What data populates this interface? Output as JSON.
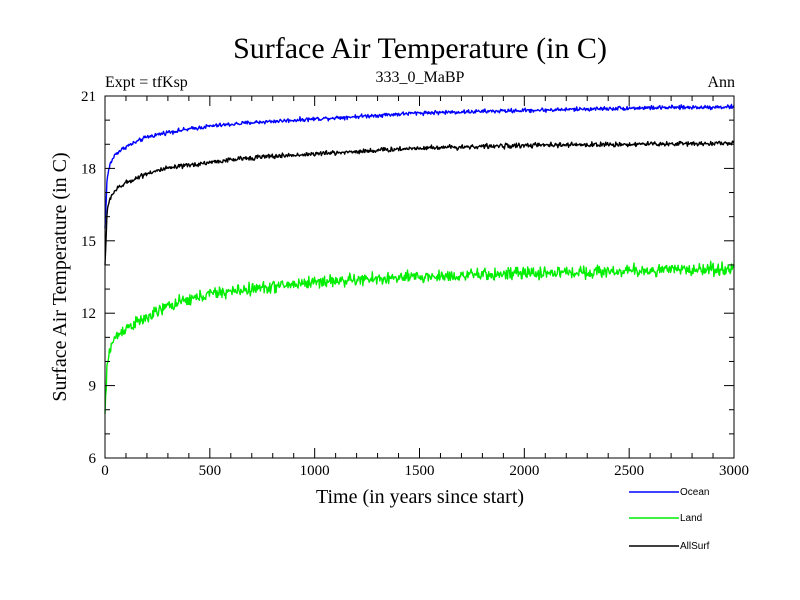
{
  "chart_data": {
    "type": "line",
    "title": "Surface Air Temperature (in C)",
    "subtitle_left": "Expt = tfKsp",
    "subtitle_center": "333_0_MaBP",
    "subtitle_right": "Ann",
    "xlabel": "Time (in years since start)",
    "ylabel": "Surface Air Temperature (in C)",
    "xlim": [
      0,
      3000
    ],
    "ylim": [
      6,
      21
    ],
    "xticks": [
      0,
      500,
      1000,
      1500,
      2000,
      2500,
      3000
    ],
    "yticks": [
      6,
      9,
      12,
      15,
      18,
      21
    ],
    "xtick_labels": [
      "0",
      "500",
      "1000",
      "1500",
      "2000",
      "2500",
      "3000"
    ],
    "ytick_labels": [
      "6",
      "9",
      "12",
      "15",
      "18",
      "21"
    ],
    "x": [
      0,
      10,
      25,
      50,
      100,
      200,
      300,
      500,
      700,
      1000,
      1500,
      2000,
      2500,
      3000
    ],
    "series": [
      {
        "name": "Ocean",
        "color": "#0000ff",
        "values": [
          15.5,
          17.6,
          18.2,
          18.6,
          18.9,
          19.3,
          19.5,
          19.75,
          19.9,
          20.05,
          20.3,
          20.4,
          20.5,
          20.55
        ],
        "noise": 0.06
      },
      {
        "name": "Land",
        "color": "#00ee00",
        "values": [
          7.8,
          9.8,
          10.6,
          11.0,
          11.4,
          11.8,
          12.3,
          12.8,
          13.0,
          13.3,
          13.5,
          13.65,
          13.75,
          13.85
        ],
        "noise": 0.18
      },
      {
        "name": "AllSurf",
        "color": "#000000",
        "values": [
          14.0,
          16.2,
          16.8,
          17.1,
          17.4,
          17.8,
          18.0,
          18.25,
          18.45,
          18.6,
          18.85,
          18.95,
          19.0,
          19.05
        ],
        "noise": 0.07
      }
    ],
    "legend_placement": "bottom-right"
  }
}
